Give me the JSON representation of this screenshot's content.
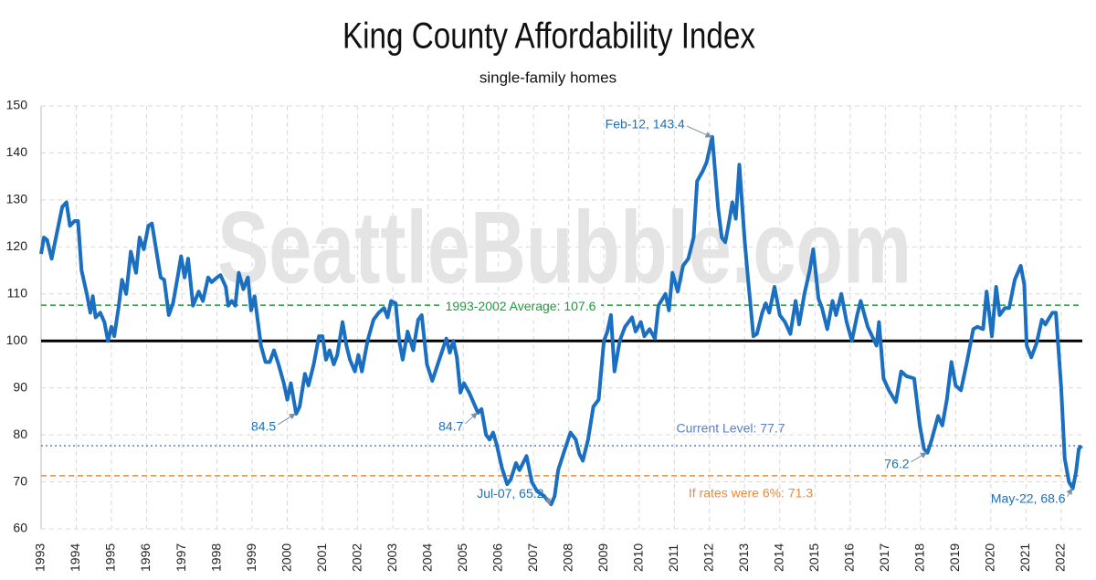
{
  "chart_data": {
    "type": "line",
    "title": "King County Affordability Index",
    "subtitle": "single-family homes",
    "watermark": "SeattleBubble.com",
    "color": "#1a6fc0",
    "grid": true,
    "xlim": [
      1993,
      2022.6
    ],
    "xticks": [
      1993,
      1994,
      1995,
      1996,
      1997,
      1998,
      1999,
      2000,
      2001,
      2002,
      2003,
      2004,
      2005,
      2006,
      2007,
      2008,
      2009,
      2010,
      2011,
      2012,
      2013,
      2014,
      2015,
      2016,
      2017,
      2018,
      2019,
      2020,
      2021,
      2022
    ],
    "ylim": [
      60,
      150
    ],
    "yticks": [
      60,
      70,
      80,
      90,
      100,
      110,
      120,
      130,
      140,
      150
    ],
    "x": [
      1993.0,
      1993.08,
      1993.17,
      1993.3,
      1993.45,
      1993.6,
      1993.72,
      1993.82,
      1993.95,
      1994.05,
      1994.15,
      1994.3,
      1994.4,
      1994.47,
      1994.55,
      1994.68,
      1994.8,
      1994.9,
      1995.0,
      1995.08,
      1995.2,
      1995.3,
      1995.42,
      1995.55,
      1995.7,
      1995.8,
      1995.92,
      1996.05,
      1996.15,
      1996.28,
      1996.4,
      1996.5,
      1996.63,
      1996.75,
      1996.88,
      1996.98,
      1997.08,
      1997.18,
      1997.32,
      1997.48,
      1997.6,
      1997.75,
      1997.85,
      1998.0,
      1998.1,
      1998.25,
      1998.32,
      1998.42,
      1998.52,
      1998.62,
      1998.75,
      1998.88,
      1998.97,
      1999.07,
      1999.13,
      1999.25,
      1999.38,
      1999.5,
      1999.62,
      1999.75,
      1999.9,
      2000.0,
      2000.1,
      2000.25,
      2000.35,
      2000.5,
      2000.6,
      2000.75,
      2000.9,
      2001.0,
      2001.1,
      2001.2,
      2001.32,
      2001.42,
      2001.57,
      2001.68,
      2001.78,
      2001.92,
      2002.02,
      2002.12,
      2002.28,
      2002.45,
      2002.6,
      2002.75,
      2002.85,
      2002.95,
      2003.08,
      2003.18,
      2003.28,
      2003.42,
      2003.58,
      2003.72,
      2003.82,
      2003.97,
      2004.12,
      2004.32,
      2004.52,
      2004.62,
      2004.72,
      2004.82,
      2004.92,
      2005.02,
      2005.17,
      2005.42,
      2005.52,
      2005.65,
      2005.75,
      2005.85,
      2005.95,
      2006.1,
      2006.25,
      2006.35,
      2006.5,
      2006.6,
      2006.8,
      2006.95,
      2007.1,
      2007.3,
      2007.5,
      2007.6,
      2007.7,
      2007.85,
      2008.05,
      2008.2,
      2008.3,
      2008.4,
      2008.55,
      2008.7,
      2008.85,
      2009.0,
      2009.1,
      2009.2,
      2009.3,
      2009.45,
      2009.6,
      2009.8,
      2009.9,
      2010.05,
      2010.15,
      2010.3,
      2010.45,
      2010.55,
      2010.75,
      2010.85,
      2010.95,
      2011.1,
      2011.25,
      2011.4,
      2011.55,
      2011.65,
      2011.8,
      2011.92,
      2012.08,
      2012.25,
      2012.35,
      2012.45,
      2012.55,
      2012.65,
      2012.75,
      2012.85,
      2013.0,
      2013.1,
      2013.25,
      2013.35,
      2013.5,
      2013.6,
      2013.7,
      2013.85,
      2014.0,
      2014.15,
      2014.3,
      2014.45,
      2014.55,
      2014.7,
      2014.85,
      2014.95,
      2015.1,
      2015.2,
      2015.35,
      2015.5,
      2015.6,
      2015.75,
      2015.9,
      2016.05,
      2016.2,
      2016.3,
      2016.5,
      2016.75,
      2016.82,
      2016.95,
      2017.1,
      2017.3,
      2017.45,
      2017.6,
      2017.82,
      2017.98,
      2018.1,
      2018.2,
      2018.32,
      2018.5,
      2018.62,
      2018.75,
      2018.88,
      2019.0,
      2019.15,
      2019.32,
      2019.5,
      2019.62,
      2019.78,
      2019.88,
      2020.03,
      2020.15,
      2020.25,
      2020.4,
      2020.52,
      2020.68,
      2020.85,
      2020.95,
      2021.02,
      2021.15,
      2021.3,
      2021.45,
      2021.55,
      2021.75,
      2021.85,
      2022.0,
      2022.1,
      2022.22,
      2022.33,
      2022.42,
      2022.5,
      2022.58
    ],
    "values": [
      118.5,
      122,
      121.5,
      117.5,
      123,
      128.5,
      129.5,
      124.5,
      125.5,
      125.5,
      115,
      110,
      106,
      109.5,
      105,
      106,
      104,
      100,
      103,
      101,
      107,
      113,
      110,
      119,
      114.5,
      122,
      119.5,
      124.5,
      125,
      119,
      113.5,
      113,
      105.5,
      108,
      113.5,
      118,
      113.5,
      117.5,
      107.5,
      110.5,
      108.5,
      113.5,
      112.5,
      113.5,
      114,
      111.5,
      107.5,
      108.5,
      107.5,
      114.5,
      111,
      113.5,
      106.5,
      109.5,
      106,
      99,
      95.5,
      95.5,
      98,
      95,
      91,
      87.5,
      91,
      84.5,
      86,
      93,
      90.5,
      95,
      101,
      101,
      96,
      98,
      95,
      97,
      104,
      99,
      96,
      93.5,
      97,
      93.5,
      100,
      104.5,
      106,
      107,
      105,
      108.5,
      108,
      100,
      96,
      102,
      98,
      104.5,
      105.5,
      95,
      91.5,
      96,
      100.5,
      97.5,
      100,
      96.5,
      89,
      91,
      89,
      84.7,
      85.5,
      80,
      79,
      80.5,
      78,
      73,
      69.5,
      70.5,
      74,
      72.5,
      75.5,
      70,
      68,
      67,
      65.2,
      67,
      72.5,
      76,
      80.5,
      79,
      76,
      74.5,
      79,
      86,
      87.5,
      100,
      102,
      105.5,
      93.5,
      100,
      103,
      105,
      102,
      104,
      101,
      102.5,
      100.5,
      107.5,
      110,
      106.5,
      114.5,
      110.5,
      116,
      117.5,
      122,
      134,
      136,
      138,
      143.4,
      128,
      122,
      121,
      125,
      129.5,
      126,
      137.5,
      121.5,
      113,
      101,
      101.5,
      106,
      108,
      106,
      111.5,
      105.5,
      104,
      101.5,
      108.5,
      103.5,
      110,
      115,
      119.5,
      109,
      107,
      102.5,
      108.5,
      105.5,
      110,
      104,
      100,
      105.5,
      108.5,
      103,
      99,
      104,
      92,
      89.5,
      87,
      93.5,
      92.5,
      92,
      82,
      77,
      76.2,
      79,
      84,
      82,
      87.5,
      95.5,
      90.5,
      89.5,
      95.5,
      102.5,
      103,
      102.5,
      110.5,
      101,
      111.5,
      105.5,
      107,
      107,
      113,
      116,
      112,
      99,
      96.5,
      99.5,
      104.5,
      103.5,
      106,
      106,
      90,
      75,
      70,
      68.6,
      72,
      77,
      77.7
    ],
    "reference_lines": [
      {
        "value": 100,
        "color": "#000000",
        "style": "solid"
      },
      {
        "value": 107.6,
        "label": "1993-2002 Average: 107.6",
        "color": "#1e9c3c",
        "style": "dashed"
      },
      {
        "value": 77.7,
        "label": "Current Level: 77.7",
        "color": "#5b7fbf",
        "style": "dotted"
      },
      {
        "value": 71.3,
        "label": "If rates were 6%: 71.3",
        "color": "#f0883a",
        "style": "dashed"
      }
    ],
    "annotations": [
      {
        "text": "Feb-12, 143.4",
        "x": 2012.08,
        "y": 143.4
      },
      {
        "text": "Jul-07, 65.2",
        "x": 2007.5,
        "y": 65.2
      },
      {
        "text": "May-22, 68.6",
        "x": 2022.33,
        "y": 68.6
      },
      {
        "text": "84.5",
        "x": 2000.25,
        "y": 84.5
      },
      {
        "text": "84.7",
        "x": 2005.42,
        "y": 84.7
      },
      {
        "text": "76.2",
        "x": 2018.2,
        "y": 76.2
      }
    ]
  }
}
